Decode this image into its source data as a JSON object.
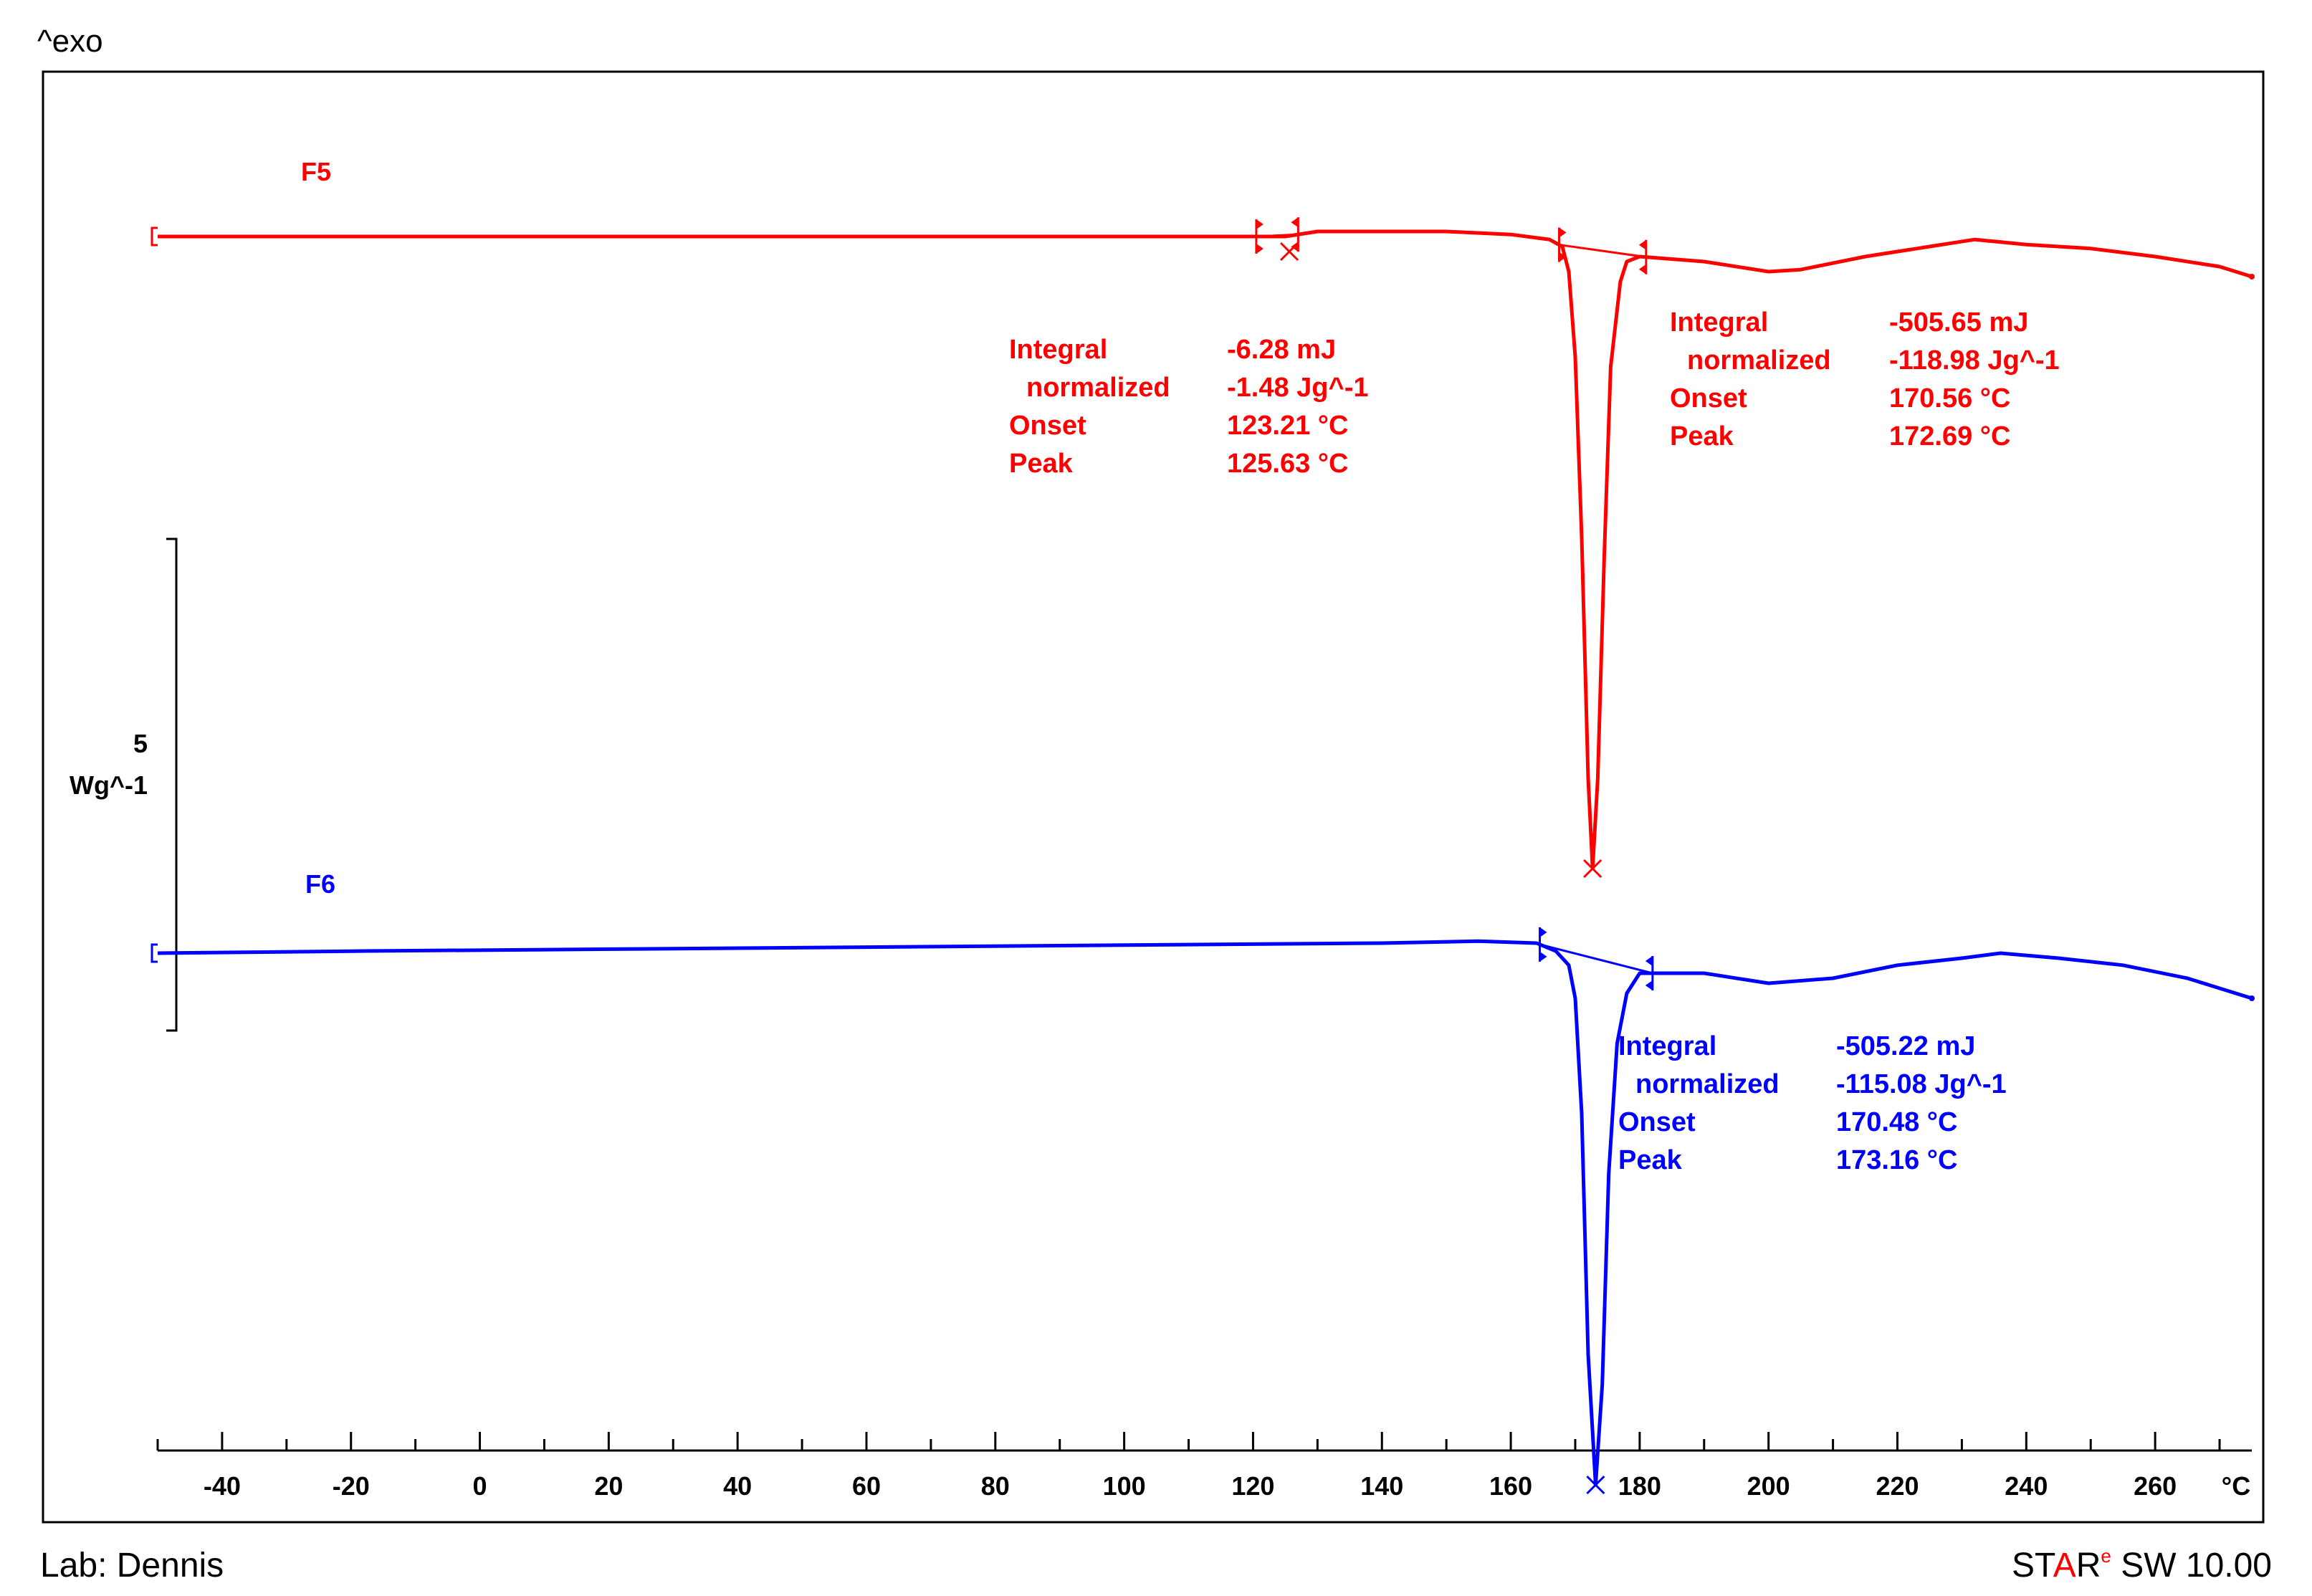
{
  "header": {
    "exo_label": "^exo"
  },
  "footer": {
    "lab_label": "Lab: Dennis",
    "software_prefix_1": "ST",
    "software_prefix_2": "A",
    "software_prefix_3": "R",
    "software_superscript": "e",
    "software_suffix": " SW 10.00"
  },
  "colors": {
    "F5": "#ff0000",
    "F6": "#0000ff",
    "axis": "#000000"
  },
  "chart_data": {
    "type": "line",
    "title": "",
    "xlabel": "°C",
    "ylabel": "Wg^-1",
    "y_scale_bar_value": "5",
    "y_scale_bar_unit": "Wg^-1",
    "xlim": [
      -50,
      275
    ],
    "x_ticks": [
      -40,
      -20,
      0,
      20,
      40,
      60,
      80,
      100,
      120,
      140,
      160,
      180,
      200,
      220,
      240,
      260
    ],
    "x_unit_label": "°C",
    "grid": false,
    "series": [
      {
        "name": "F5",
        "color": "#ff0000",
        "baseline_y": 0,
        "curve": [
          [
            -50,
            0
          ],
          [
            -30,
            0
          ],
          [
            0,
            0
          ],
          [
            40,
            0
          ],
          [
            80,
            0
          ],
          [
            120,
            0
          ],
          [
            125,
            0
          ],
          [
            130,
            0.05
          ],
          [
            140,
            0.05
          ],
          [
            150,
            0.05
          ],
          [
            160,
            0.02
          ],
          [
            166,
            -0.03
          ],
          [
            168,
            -0.1
          ],
          [
            169,
            -0.35
          ],
          [
            170,
            -1.2
          ],
          [
            171,
            -3.0
          ],
          [
            172,
            -5.4
          ],
          [
            172.7,
            -6.3
          ],
          [
            173.5,
            -5.4
          ],
          [
            174.5,
            -3.2
          ],
          [
            175.5,
            -1.3
          ],
          [
            177,
            -0.45
          ],
          [
            178,
            -0.25
          ],
          [
            180,
            -0.2
          ],
          [
            190,
            -0.25
          ],
          [
            200,
            -0.35
          ],
          [
            205,
            -0.33
          ],
          [
            215,
            -0.2
          ],
          [
            225,
            -0.1
          ],
          [
            232,
            -0.03
          ],
          [
            240,
            -0.08
          ],
          [
            250,
            -0.12
          ],
          [
            260,
            -0.2
          ],
          [
            270,
            -0.3
          ],
          [
            275,
            -0.4
          ]
        ],
        "peaks": [
          {
            "integral": "-6.28 mJ",
            "normalized": "-1.48 Jg^-1",
            "onset": "123.21 °C",
            "peak": "125.63 °C",
            "peak_x": 125.63,
            "peak_y": -0.15,
            "limits": [
              120.5,
              127
            ]
          },
          {
            "integral": "-505.65 mJ",
            "normalized": "-118.98 Jg^-1",
            "onset": "170.56 °C",
            "peak": "172.69 °C",
            "peak_x": 172.69,
            "peak_y": -6.3,
            "limits": [
              167.5,
              181
            ]
          }
        ]
      },
      {
        "name": "F6",
        "color": "#0000ff",
        "baseline_y": 0,
        "curve": [
          [
            -50,
            0
          ],
          [
            -20,
            0.02
          ],
          [
            20,
            0.04
          ],
          [
            60,
            0.06
          ],
          [
            100,
            0.08
          ],
          [
            140,
            0.1
          ],
          [
            155,
            0.12
          ],
          [
            164,
            0.1
          ],
          [
            167,
            0.02
          ],
          [
            169,
            -0.12
          ],
          [
            170,
            -0.45
          ],
          [
            171,
            -1.6
          ],
          [
            172,
            -4.0
          ],
          [
            173.16,
            -5.3
          ],
          [
            174.2,
            -4.3
          ],
          [
            175.2,
            -2.2
          ],
          [
            176.5,
            -0.9
          ],
          [
            178,
            -0.4
          ],
          [
            180,
            -0.2
          ],
          [
            190,
            -0.2
          ],
          [
            200,
            -0.3
          ],
          [
            210,
            -0.25
          ],
          [
            220,
            -0.12
          ],
          [
            230,
            -0.05
          ],
          [
            236,
            0.0
          ],
          [
            245,
            -0.05
          ],
          [
            255,
            -0.12
          ],
          [
            265,
            -0.25
          ],
          [
            275,
            -0.45
          ]
        ],
        "peaks": [
          {
            "integral": "-505.22 mJ",
            "normalized": "-115.08 Jg^-1",
            "onset": "170.48 °C",
            "peak": "173.16 °C",
            "peak_x": 173.16,
            "peak_y": -5.3,
            "limits": [
              164.5,
              182
            ]
          }
        ]
      }
    ],
    "annotation_labels": {
      "integral": "Integral",
      "normalized": "normalized",
      "onset": "Onset",
      "peak": "Peak"
    }
  }
}
